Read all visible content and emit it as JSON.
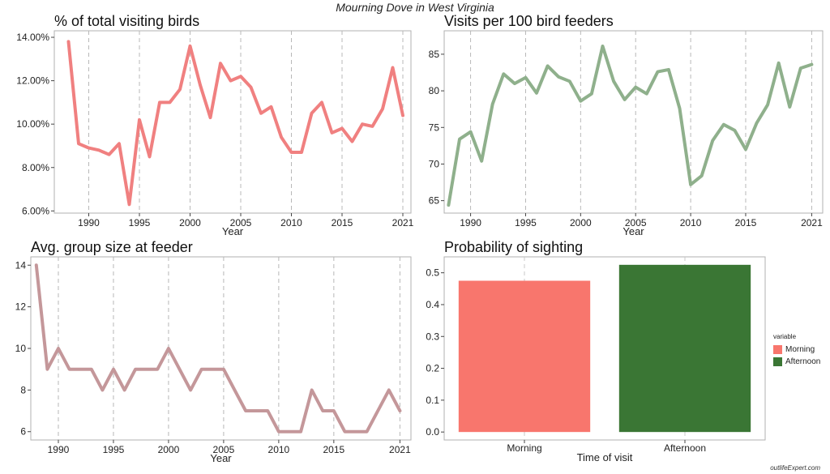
{
  "figure": {
    "title": "Mourning Dove in West Virginia",
    "watermark": "outlifeExpert.com"
  },
  "chart_data": [
    {
      "type": "line",
      "title": "% of total visiting birds",
      "xlabel": "Year",
      "ylabel": "",
      "color": "#f08080",
      "x": [
        1988,
        1989,
        1990,
        1991,
        1992,
        1993,
        1994,
        1995,
        1996,
        1997,
        1998,
        1999,
        2000,
        2001,
        2002,
        2003,
        2004,
        2005,
        2006,
        2007,
        2008,
        2009,
        2010,
        2011,
        2012,
        2013,
        2014,
        2015,
        2016,
        2017,
        2018,
        2019,
        2020,
        2021
      ],
      "values": [
        13.8,
        9.1,
        8.9,
        8.8,
        8.6,
        9.1,
        6.3,
        10.2,
        8.5,
        11.0,
        11.0,
        11.6,
        13.6,
        11.8,
        10.3,
        12.8,
        12.0,
        12.2,
        11.7,
        10.5,
        10.8,
        9.4,
        8.7,
        8.7,
        10.5,
        11.0,
        9.6,
        9.8,
        9.2,
        10.0,
        9.9,
        10.7,
        12.6,
        10.4
      ],
      "ylim": [
        5.9,
        14.3
      ],
      "yticks": [
        6,
        8,
        10,
        12,
        14
      ],
      "ytick_labels": [
        "6.00%",
        "8.00%",
        "10.00%",
        "12.00%",
        "14.00%"
      ],
      "xticks": [
        1990,
        1995,
        2000,
        2005,
        2010,
        2015,
        2021
      ],
      "xtick_labels": [
        "1990",
        "1995",
        "2000",
        "2005",
        "2010",
        "2015",
        "2021"
      ],
      "grid": "dashed vertical"
    },
    {
      "type": "line",
      "title": "Visits per 100 bird feeders",
      "xlabel": "Year",
      "ylabel": "",
      "color": "#8fb08c",
      "x": [
        1988,
        1989,
        1990,
        1991,
        1992,
        1993,
        1994,
        1995,
        1996,
        1997,
        1998,
        1999,
        2000,
        2001,
        2002,
        2003,
        2004,
        2005,
        2006,
        2007,
        2008,
        2009,
        2010,
        2011,
        2012,
        2013,
        2014,
        2015,
        2016,
        2017,
        2018,
        2019,
        2020,
        2021
      ],
      "values": [
        64.4,
        73.4,
        74.4,
        70.4,
        78.2,
        82.3,
        81.0,
        81.8,
        79.7,
        83.4,
        81.9,
        81.3,
        78.6,
        79.6,
        86.1,
        81.3,
        78.8,
        80.5,
        79.6,
        82.6,
        82.9,
        77.6,
        67.2,
        68.4,
        73.2,
        75.4,
        74.6,
        72.0,
        75.6,
        78.1,
        83.8,
        77.8,
        83.1,
        83.6
      ],
      "ylim": [
        63.3,
        88.2
      ],
      "yticks": [
        65,
        70,
        75,
        80,
        85
      ],
      "ytick_labels": [
        "65",
        "70",
        "75",
        "80",
        "85"
      ],
      "xticks": [
        1990,
        1995,
        2000,
        2005,
        2010,
        2015,
        2021
      ],
      "xtick_labels": [
        "1990",
        "1995",
        "2000",
        "2005",
        "2010",
        "2015",
        "2021"
      ],
      "grid": "dashed vertical"
    },
    {
      "type": "line",
      "title": "Avg. group size at feeder",
      "xlabel": "Year",
      "ylabel": "",
      "color": "#c4979a",
      "x": [
        1988,
        1989,
        1990,
        1991,
        1992,
        1993,
        1994,
        1995,
        1996,
        1997,
        1998,
        1999,
        2000,
        2001,
        2002,
        2003,
        2004,
        2005,
        2006,
        2007,
        2008,
        2009,
        2010,
        2011,
        2012,
        2013,
        2014,
        2015,
        2016,
        2017,
        2018,
        2019,
        2020,
        2021
      ],
      "values": [
        14,
        9,
        10,
        9,
        9,
        9,
        8,
        9,
        8,
        9,
        9,
        9,
        10,
        9,
        8,
        9,
        9,
        9,
        8,
        7,
        7,
        7,
        6,
        6,
        6,
        8,
        7,
        7,
        6,
        6,
        6,
        7,
        8,
        7
      ],
      "ylim": [
        5.6,
        14.4
      ],
      "yticks": [
        6,
        8,
        10,
        12,
        14
      ],
      "ytick_labels": [
        "6",
        "8",
        "10",
        "12",
        "14"
      ],
      "xticks": [
        1990,
        1995,
        2000,
        2005,
        2010,
        2015,
        2021
      ],
      "xtick_labels": [
        "1990",
        "1995",
        "2000",
        "2005",
        "2010",
        "2015",
        "2021"
      ],
      "grid": "dashed vertical"
    },
    {
      "type": "bar",
      "title": "Probability of sighting",
      "xlabel": "Time of visit",
      "ylabel": "",
      "categories": [
        "Morning",
        "Afternoon"
      ],
      "values": [
        0.475,
        0.525
      ],
      "colors": [
        "#f8766d",
        "#3a7634"
      ],
      "ylim": [
        -0.025,
        0.55
      ],
      "yticks": [
        0.0,
        0.1,
        0.2,
        0.3,
        0.4,
        0.5
      ],
      "ytick_labels": [
        "0.0",
        "0.1",
        "0.2",
        "0.3",
        "0.4",
        "0.5"
      ],
      "grid": "dashed vertical",
      "legend": {
        "title": "variable",
        "position": "right",
        "items": [
          {
            "label": "Morning",
            "color": "#f8766d"
          },
          {
            "label": "Afternoon",
            "color": "#3a7634"
          }
        ]
      }
    }
  ]
}
